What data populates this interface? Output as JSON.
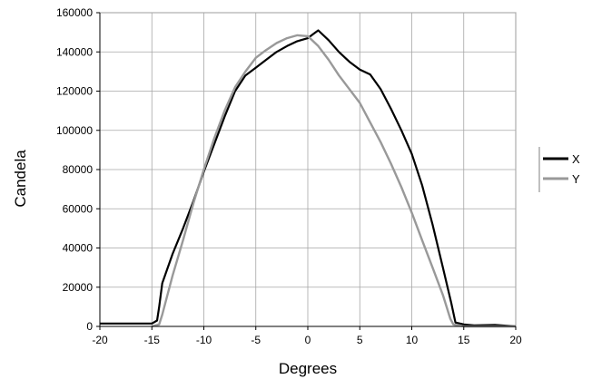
{
  "chart_data": {
    "type": "line",
    "title": "",
    "xlabel": "Degrees",
    "ylabel": "Candela",
    "xlim": [
      -20,
      20
    ],
    "ylim": [
      0,
      160000
    ],
    "x_ticks": [
      -20,
      -15,
      -10,
      -5,
      0,
      5,
      10,
      15,
      20
    ],
    "y_ticks": [
      0,
      20000,
      40000,
      60000,
      80000,
      100000,
      120000,
      140000,
      160000
    ],
    "x_tick_labels": [
      "-20",
      "-15",
      "-10",
      "-5",
      "0",
      "5",
      "10",
      "15",
      "20"
    ],
    "y_tick_labels": [
      "0",
      "20000",
      "40000",
      "60000",
      "80000",
      "100000",
      "120000",
      "140000",
      "160000"
    ],
    "grid": true,
    "legend_position": "right",
    "series": [
      {
        "name": "X",
        "color": "#000000",
        "points": [
          [
            -20,
            1500
          ],
          [
            -18,
            1500
          ],
          [
            -16,
            1500
          ],
          [
            -15,
            1500
          ],
          [
            -14.5,
            3000
          ],
          [
            -14.3,
            10000
          ],
          [
            -14,
            22000
          ],
          [
            -13,
            37000
          ],
          [
            -12,
            50000
          ],
          [
            -11,
            64000
          ],
          [
            -10,
            79000
          ],
          [
            -9,
            93000
          ],
          [
            -8,
            107000
          ],
          [
            -7,
            120000
          ],
          [
            -6,
            128000
          ],
          [
            -5,
            132000
          ],
          [
            -4,
            136000
          ],
          [
            -3,
            140000
          ],
          [
            -2,
            143000
          ],
          [
            -1,
            145500
          ],
          [
            0,
            147000
          ],
          [
            0.5,
            149000
          ],
          [
            1,
            151000
          ],
          [
            2,
            146000
          ],
          [
            3,
            140000
          ],
          [
            4,
            135000
          ],
          [
            5,
            131000
          ],
          [
            6,
            128500
          ],
          [
            7,
            121000
          ],
          [
            8,
            111000
          ],
          [
            9,
            100000
          ],
          [
            10,
            88000
          ],
          [
            11,
            72000
          ],
          [
            12,
            52000
          ],
          [
            13,
            30000
          ],
          [
            13.8,
            12000
          ],
          [
            14.2,
            2000
          ],
          [
            15,
            1000
          ],
          [
            16,
            500
          ],
          [
            18,
            800
          ],
          [
            20,
            0
          ]
        ]
      },
      {
        "name": "Y",
        "color": "#999999",
        "points": [
          [
            -15,
            0
          ],
          [
            -14.3,
            1000
          ],
          [
            -14,
            6000
          ],
          [
            -13,
            26000
          ],
          [
            -12,
            44000
          ],
          [
            -11,
            63000
          ],
          [
            -10,
            80000
          ],
          [
            -9,
            96000
          ],
          [
            -8,
            110000
          ],
          [
            -7,
            122000
          ],
          [
            -6,
            130000
          ],
          [
            -5,
            137000
          ],
          [
            -4,
            141000
          ],
          [
            -3,
            144500
          ],
          [
            -2,
            147000
          ],
          [
            -1,
            148500
          ],
          [
            0,
            148000
          ],
          [
            1,
            143000
          ],
          [
            2,
            136000
          ],
          [
            3,
            128000
          ],
          [
            4,
            121000
          ],
          [
            5,
            114000
          ],
          [
            6,
            104000
          ],
          [
            7,
            94000
          ],
          [
            8,
            83000
          ],
          [
            9,
            71000
          ],
          [
            10,
            58000
          ],
          [
            11,
            44000
          ],
          [
            12,
            30000
          ],
          [
            13,
            16000
          ],
          [
            13.7,
            4000
          ],
          [
            14,
            1000
          ],
          [
            15,
            0
          ],
          [
            20,
            0
          ]
        ]
      }
    ]
  }
}
